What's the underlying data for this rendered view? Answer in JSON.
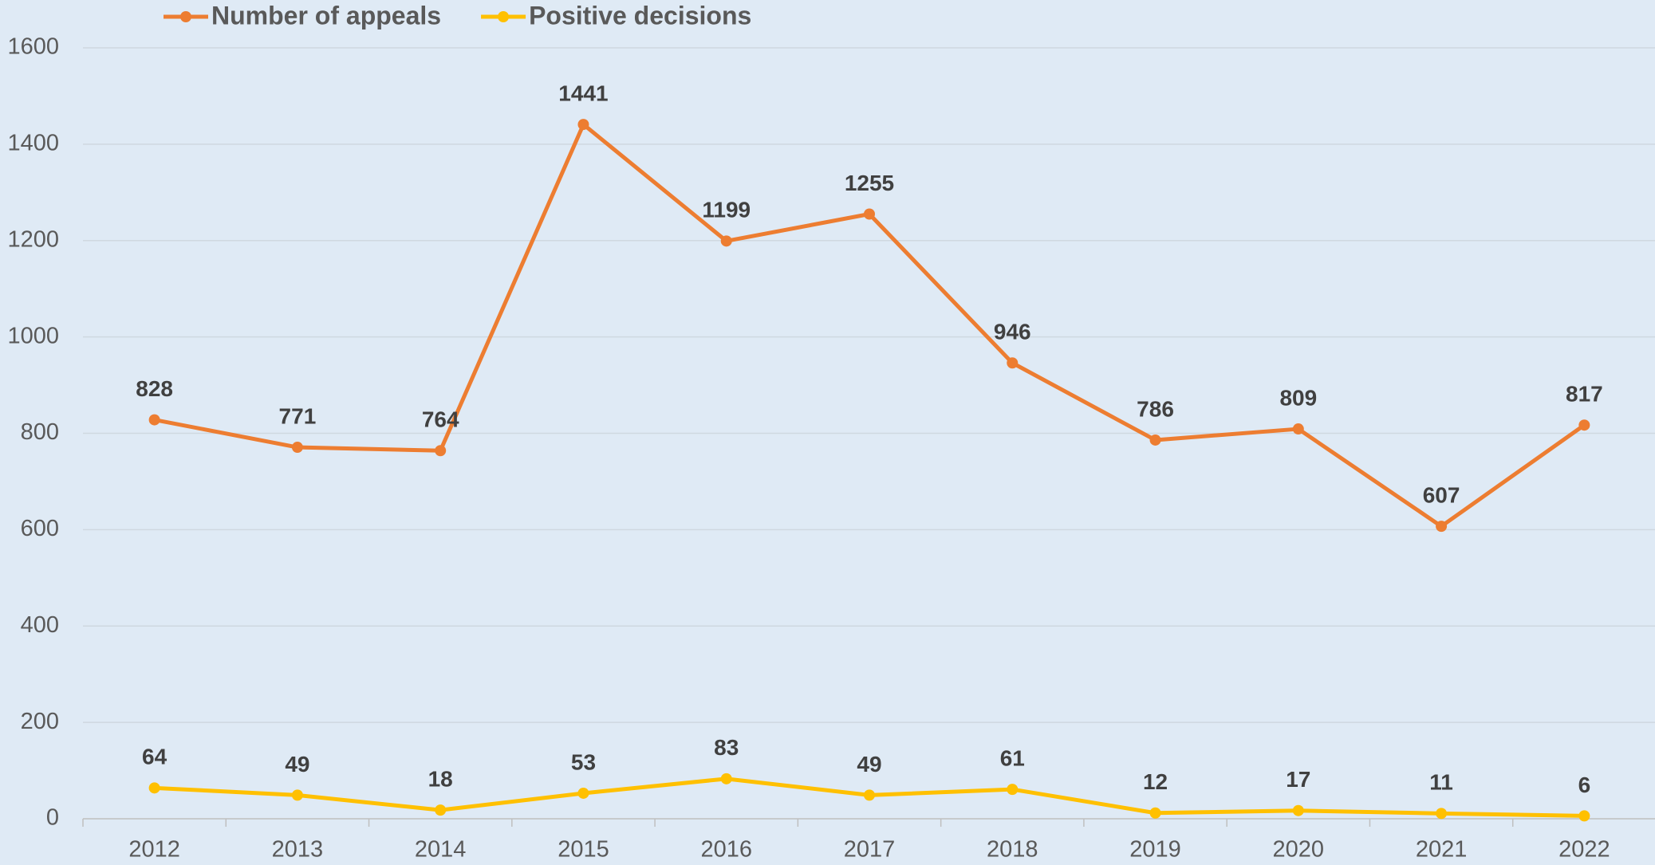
{
  "chart_data": {
    "type": "line",
    "categories": [
      "2012",
      "2013",
      "2014",
      "2015",
      "2016",
      "2017",
      "2018",
      "2019",
      "2020",
      "2021",
      "2022"
    ],
    "series": [
      {
        "name": "Number of appeals",
        "color": "#ed7d31",
        "values": [
          828,
          771,
          764,
          1441,
          1199,
          1255,
          946,
          786,
          809,
          607,
          817
        ]
      },
      {
        "name": "Positive decisions",
        "color": "#ffc000",
        "values": [
          64,
          49,
          18,
          53,
          83,
          49,
          61,
          12,
          17,
          11,
          6
        ]
      }
    ],
    "ylim": [
      0,
      1600
    ],
    "yticks": [
      0,
      200,
      400,
      600,
      800,
      1000,
      1200,
      1400,
      1600
    ],
    "grid": true,
    "legend": "top",
    "data_labels": true
  }
}
